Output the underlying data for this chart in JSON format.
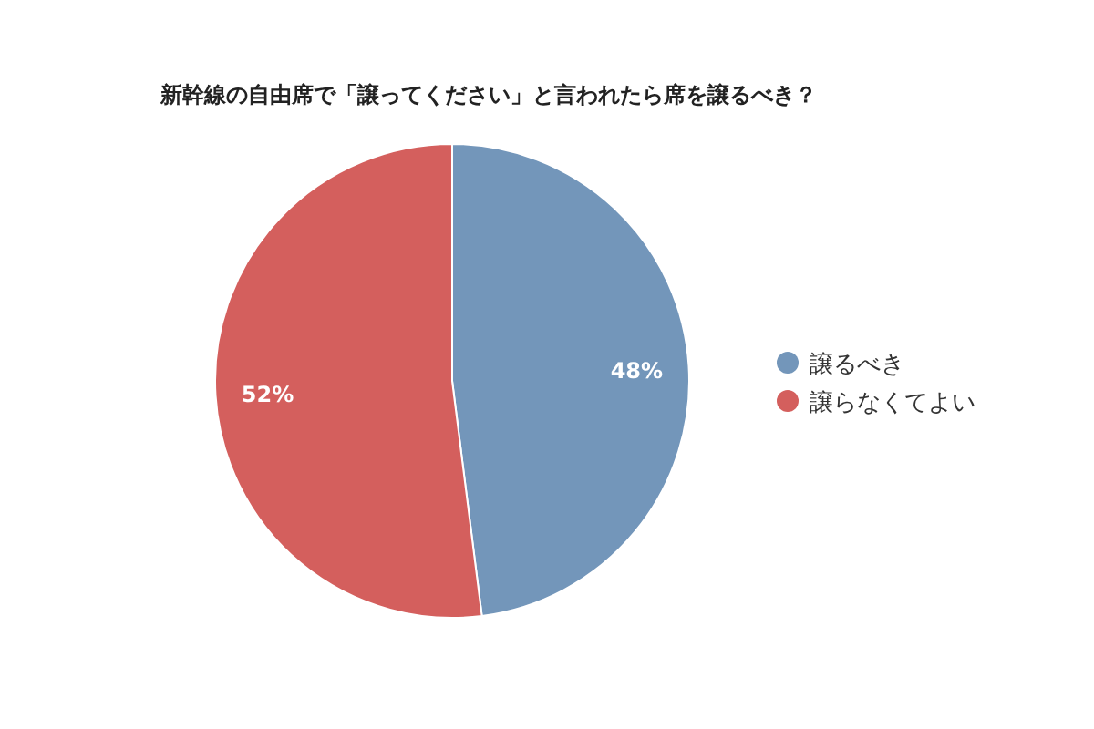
{
  "chart_data": {
    "type": "pie",
    "title": "新幹線の自由席で「譲ってください」と言われたら席を譲るべき？",
    "categories": [
      "譲るべき",
      "譲らなくてよい"
    ],
    "values": [
      48,
      52
    ],
    "colors": [
      "#7396ba",
      "#d45f5d"
    ],
    "value_labels": [
      "48%",
      "52%"
    ],
    "legend": "right"
  }
}
